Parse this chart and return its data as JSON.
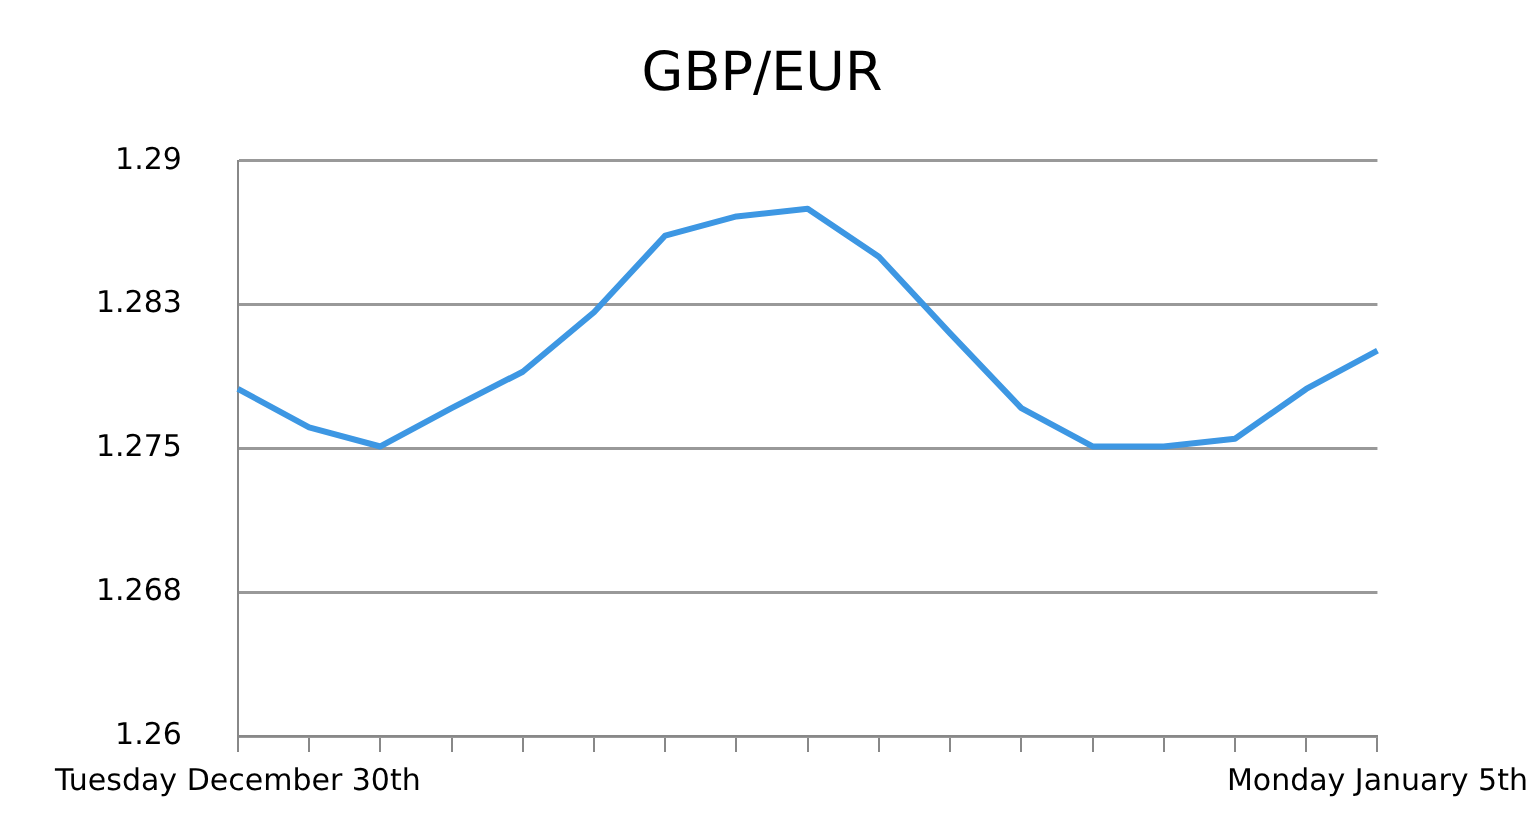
{
  "chart_data": {
    "type": "line",
    "title": "GBP/EUR",
    "categories": [
      "Tuesday December 30th",
      null,
      null,
      null,
      null,
      null,
      null,
      null,
      null,
      null,
      null,
      null,
      null,
      null,
      null,
      null,
      "Monday January 5th"
    ],
    "series": [
      {
        "color": "#3d97e3",
        "values": [
          1.2781,
          1.2761,
          1.2751,
          1.2771,
          1.279,
          1.2821,
          1.2861,
          1.2871,
          1.2875,
          1.285,
          1.281,
          1.2771,
          1.2751,
          1.2751,
          1.2755,
          1.2781,
          1.2801
        ]
      }
    ],
    "ylim": [
      1.26,
      1.29
    ],
    "yticks": [
      1.26,
      {
        "value": 1.2675,
        "label": "1.268"
      },
      1.275,
      {
        "value": 1.2825,
        "label": "1.283"
      },
      1.29
    ],
    "grid": "y",
    "legend": false,
    "marker": "none",
    "line_style": "solid"
  }
}
